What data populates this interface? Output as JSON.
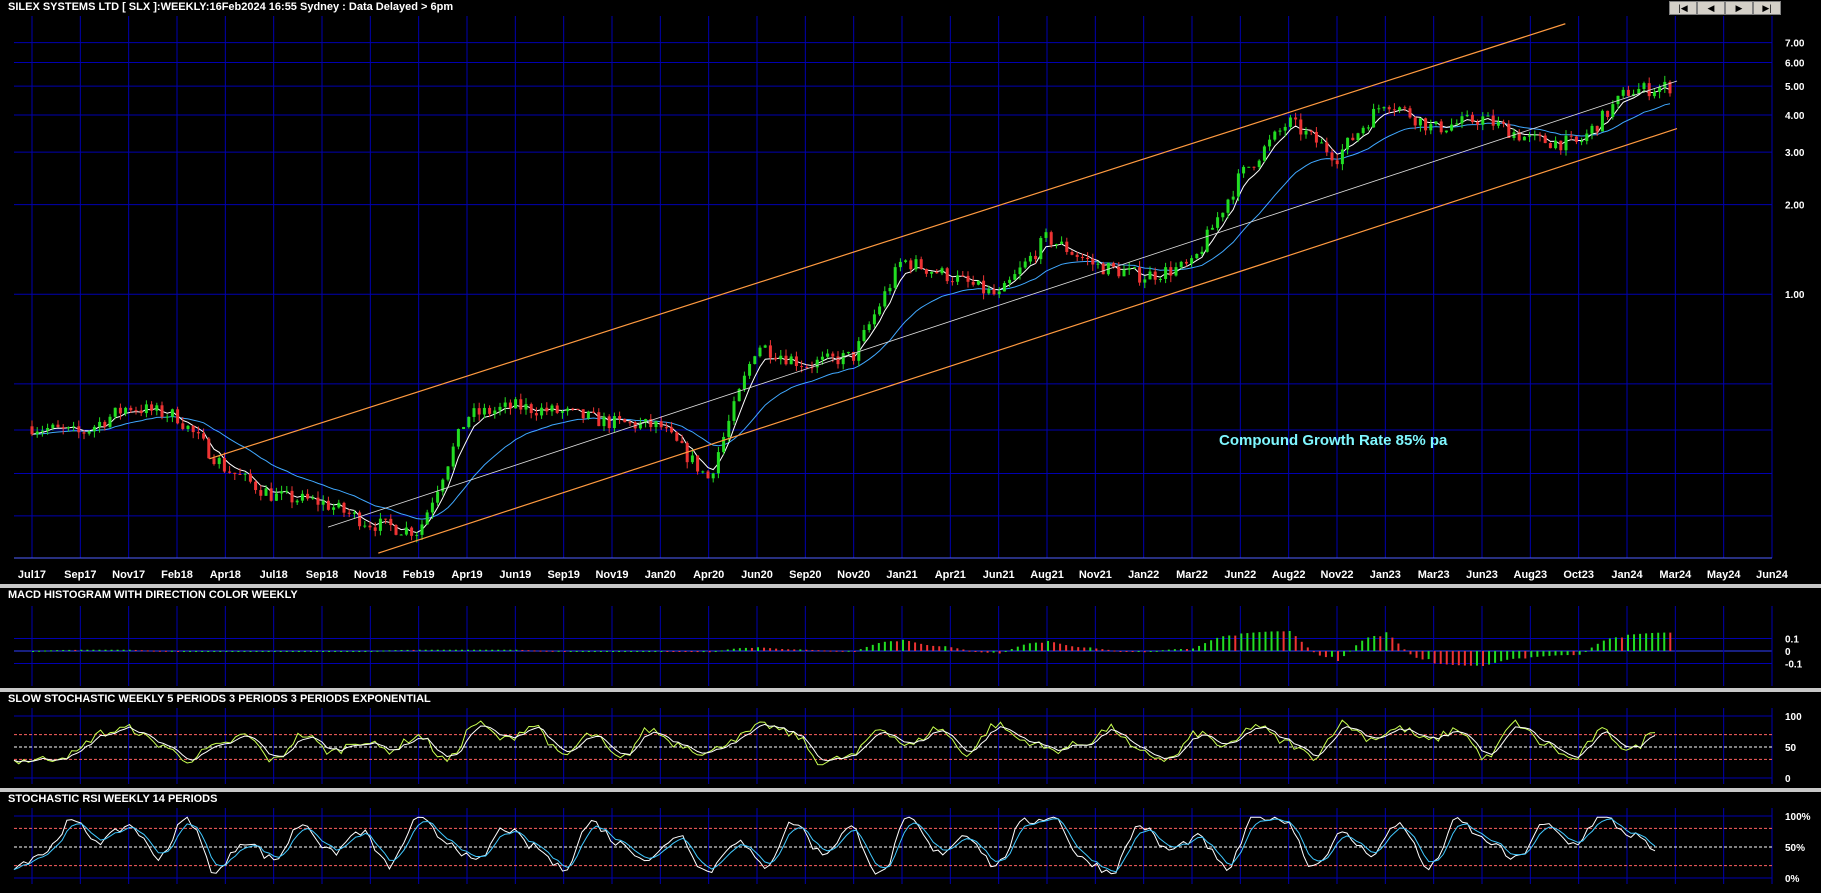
{
  "header": {
    "title": "SILEX SYSTEMS LTD [ SLX ]:WEEKLY:16Feb2024 16:55 Sydney : Data Delayed > 6pm",
    "nav_buttons": [
      "first-icon",
      "prev-icon",
      "next-icon",
      "last-icon"
    ]
  },
  "annotation": "Compound Growth Rate 85% pa",
  "colors": {
    "background": "#000000",
    "grid": "#0000b0",
    "up_candle": "#22dd22",
    "down_candle": "#ee3333",
    "channel": "#ff9a40",
    "fast_ma": "#ffffff",
    "slow_ma": "#40a8ff",
    "annotation": "#7ff7ff"
  },
  "chart_data": [
    {
      "type": "candlestick",
      "title": "SILEX SYSTEMS LTD [ SLX ]:WEEKLY:16Feb2024 16:55 Sydney : Data Delayed > 6pm",
      "x_tick_labels": [
        "Jul17",
        "Sep17",
        "Nov17",
        "Feb18",
        "Apr18",
        "Jul18",
        "Sep18",
        "Nov18",
        "Feb19",
        "Apr19",
        "Jun19",
        "Sep19",
        "Nov19",
        "Jan20",
        "Apr20",
        "Jun20",
        "Sep20",
        "Nov20",
        "Jan21",
        "Apr21",
        "Jun21",
        "Aug21",
        "Nov21",
        "Jan22",
        "Mar22",
        "Jun22",
        "Aug22",
        "Nov22",
        "Jan23",
        "Mar23",
        "Jun23",
        "Aug23",
        "Oct23",
        "Jan24",
        "Mar24",
        "May24",
        "Jun24"
      ],
      "y_scale": "log",
      "y_tick_labels": [
        "7.00",
        "6.00",
        "5.00",
        "4.00",
        "3.00",
        "2.00",
        "1.00"
      ],
      "y_ticks": [
        7,
        6,
        5,
        4,
        3,
        2,
        1
      ],
      "ylim": [
        0.13,
        8.6
      ],
      "grid": true,
      "close_series": [
        {
          "x": "Jul17",
          "y": 0.36
        },
        {
          "x": "Sep17",
          "y": 0.34
        },
        {
          "x": "Nov17",
          "y": 0.42
        },
        {
          "x": "Feb18",
          "y": 0.39
        },
        {
          "x": "Apr18",
          "y": 0.26
        },
        {
          "x": "Jul18",
          "y": 0.21
        },
        {
          "x": "Sep18",
          "y": 0.2
        },
        {
          "x": "Nov18",
          "y": 0.17
        },
        {
          "x": "Feb19",
          "y": 0.16
        },
        {
          "x": "Apr19",
          "y": 0.39
        },
        {
          "x": "Jun19",
          "y": 0.42
        },
        {
          "x": "Sep19",
          "y": 0.4
        },
        {
          "x": "Nov19",
          "y": 0.37
        },
        {
          "x": "Jan20",
          "y": 0.36
        },
        {
          "x": "Apr20",
          "y": 0.24
        },
        {
          "x": "Jun20",
          "y": 0.68
        },
        {
          "x": "Sep20",
          "y": 0.58
        },
        {
          "x": "Nov20",
          "y": 0.62
        },
        {
          "x": "Jan21",
          "y": 1.3
        },
        {
          "x": "Apr21",
          "y": 1.15
        },
        {
          "x": "Jun21",
          "y": 0.98
        },
        {
          "x": "Aug21",
          "y": 1.55
        },
        {
          "x": "Nov21",
          "y": 1.25
        },
        {
          "x": "Jan22",
          "y": 1.15
        },
        {
          "x": "Mar22",
          "y": 1.25
        },
        {
          "x": "Jun22",
          "y": 2.5
        },
        {
          "x": "Aug22",
          "y": 3.8
        },
        {
          "x": "Nov22",
          "y": 2.9
        },
        {
          "x": "Jan23",
          "y": 4.5
        },
        {
          "x": "Mar23",
          "y": 3.6
        },
        {
          "x": "Jun23",
          "y": 3.9
        },
        {
          "x": "Aug23",
          "y": 3.3
        },
        {
          "x": "Oct23",
          "y": 3.2
        },
        {
          "x": "Jan24",
          "y": 4.8
        },
        {
          "x": "Feb24",
          "y": 5.0
        }
      ]
    },
    {
      "type": "bar",
      "title": "MACD HISTOGRAM WITH DIRECTION COLOR WEEKLY",
      "y_tick_labels": [
        "0.1",
        "0",
        "-0.1"
      ],
      "y_ticks": [
        0.1,
        0,
        -0.1
      ],
      "grid": true,
      "values": [
        0.0,
        0.01,
        0.01,
        0.0,
        0.0,
        0.0,
        0.0,
        0.0,
        0.01,
        0.01,
        0.01,
        0.0,
        0.0,
        0.0,
        -0.01,
        0.03,
        0.01,
        0.0,
        0.09,
        0.03,
        -0.02,
        0.08,
        0.02,
        -0.01,
        0.02,
        0.14,
        0.16,
        -0.08,
        0.15,
        -0.1,
        -0.12,
        -0.05,
        -0.03,
        0.13,
        0.15
      ]
    },
    {
      "type": "line",
      "title": "SLOW STOCHASTIC WEEKLY 5 PERIODS 3 PERIODS 3 PERIODS EXPONENTIAL",
      "y_tick_labels": [
        "100",
        "50",
        "0"
      ],
      "y_ticks": [
        100,
        50,
        0
      ],
      "reference_lines": [
        70,
        50,
        30
      ],
      "grid": true,
      "values": [
        28,
        30,
        38,
        72,
        80,
        55,
        30,
        50,
        68,
        28,
        70,
        42,
        60,
        45,
        68,
        28,
        88,
        62,
        85,
        35,
        70,
        30,
        78,
        55,
        40,
        65,
        85,
        70,
        25,
        35,
        80,
        52,
        80,
        40,
        86,
        60,
        45,
        55,
        80,
        40,
        30,
        72,
        50,
        85,
        58,
        35,
        88,
        64,
        80,
        60,
        78,
        32,
        88,
        55,
        30,
        75,
        45,
        82
      ]
    },
    {
      "type": "line",
      "title": "STOCHASTIC RSI WEEKLY 14 PERIODS",
      "y_tick_labels": [
        "100%",
        "50%",
        "0%"
      ],
      "y_ticks": [
        100,
        50,
        0
      ],
      "reference_lines": [
        80,
        50,
        20
      ],
      "grid": true,
      "values": [
        20,
        40,
        90,
        60,
        85,
        35,
        95,
        10,
        60,
        30,
        88,
        40,
        75,
        20,
        95,
        60,
        25,
        80,
        50,
        15,
        90,
        55,
        30,
        70,
        10,
        60,
        20,
        90,
        40,
        80,
        5,
        95,
        40,
        70,
        20,
        90,
        100,
        30,
        10,
        85,
        45,
        65,
        15,
        100,
        95,
        20,
        70,
        40,
        88,
        15,
        92,
        60,
        30,
        85,
        55,
        100,
        70,
        40
      ]
    }
  ]
}
